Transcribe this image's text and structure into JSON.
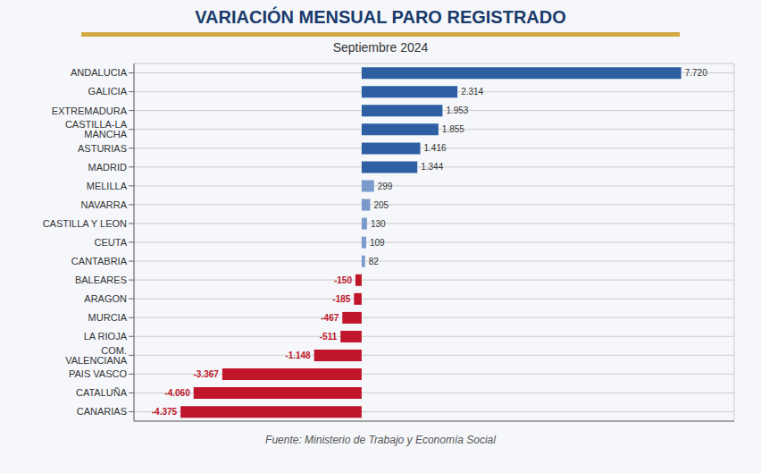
{
  "chart_data": {
    "type": "bar",
    "orientation": "horizontal",
    "title": "VARIACIÓN  MENSUAL  PARO  REGISTRADO",
    "subtitle": "Septiembre 2024",
    "annotations": [
      "Fuente: Ministerio de Trabajo y Economía Social"
    ],
    "categories": [
      "ANDALUCIA",
      "GALICIA",
      "EXTREMADURA",
      "CASTILLA-LA MANCHA",
      "ASTURIAS",
      "MADRID",
      "MELILLA",
      "NAVARRA",
      "CASTILLA Y LEON",
      "CEUTA",
      "CANTABRIA",
      "BALEARES",
      "ARAGON",
      "MURCIA",
      "LA RIOJA",
      "COM. VALENCIANA",
      "PAIS VASCO",
      "CATALUÑA",
      "CANARIAS"
    ],
    "values": [
      7720,
      2314,
      1953,
      1855,
      1416,
      1344,
      299,
      205,
      130,
      109,
      82,
      -150,
      -185,
      -467,
      -511,
      -1148,
      -3367,
      -4060,
      -4375
    ],
    "value_labels": [
      "7.720",
      "2.314",
      "1.953",
      "1.855",
      "1.416",
      "1.344",
      "299",
      "205",
      "130",
      "109",
      "82",
      "-150",
      "-185",
      "-467",
      "-511",
      "-1.148",
      "-3.367",
      "-4.060",
      "-4.375"
    ],
    "data_labels": true,
    "colors": [
      "#2e5fa3",
      "#2e5fa3",
      "#2e5fa3",
      "#2e5fa3",
      "#2e5fa3",
      "#2e5fa3",
      "#7a9acc",
      "#7a9acc",
      "#7a9acc",
      "#7a9acc",
      "#7a9acc",
      "#c0152a",
      "#c0152a",
      "#c0152a",
      "#c0152a",
      "#c0152a",
      "#c0152a",
      "#c0152a",
      "#c0152a"
    ],
    "xlim": [
      -5500,
      9000
    ],
    "xticks": [
      -4000,
      -2000,
      0,
      2000,
      4000,
      6000,
      8000
    ],
    "grid": true,
    "tick_labels": "y"
  }
}
